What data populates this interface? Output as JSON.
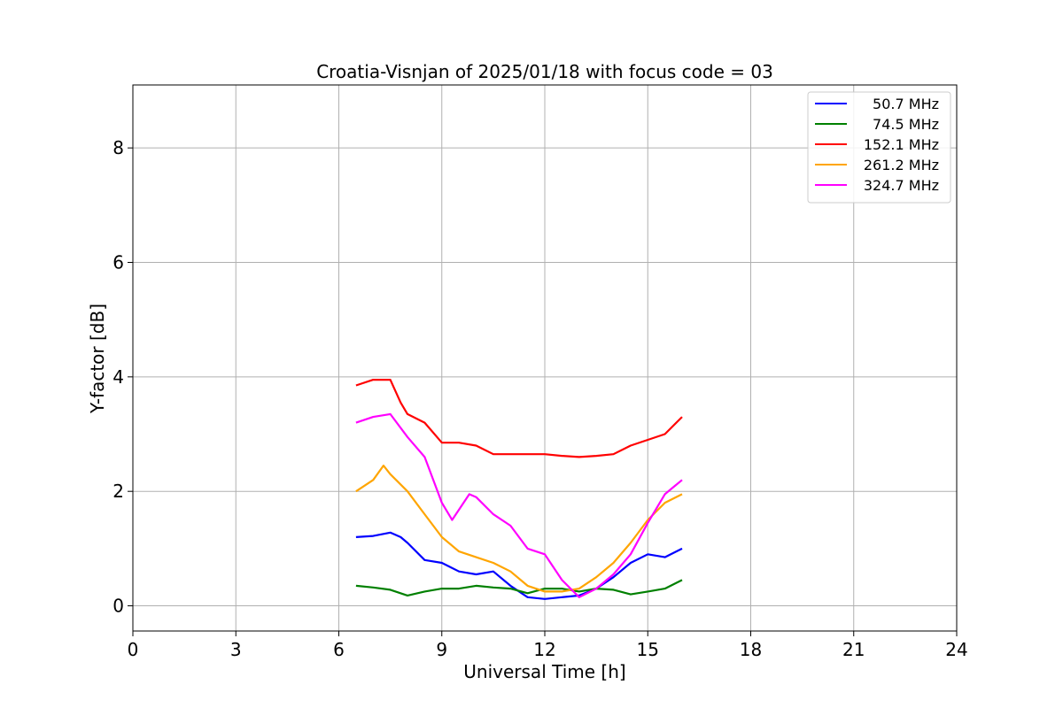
{
  "chart_data": {
    "type": "line",
    "title": "Croatia-Visnjan of 2025/01/18 with focus code = 03",
    "xlabel": "Universal Time [h]",
    "ylabel": "Y-factor [dB]",
    "xlim": [
      0,
      24
    ],
    "ylim": [
      -0.44,
      9.1
    ],
    "xticks": [
      0,
      3,
      6,
      9,
      12,
      15,
      18,
      21,
      24
    ],
    "yticks": [
      0,
      2,
      4,
      6,
      8
    ],
    "grid": true,
    "legend_position": "top-right",
    "series": [
      {
        "name": "50.7 MHz",
        "color": "#0000ff",
        "x": [
          6.5,
          7.0,
          7.5,
          7.8,
          8.0,
          8.5,
          9.0,
          9.5,
          10.0,
          10.5,
          11.0,
          11.5,
          12.0,
          12.5,
          13.0,
          13.5,
          14.0,
          14.5,
          15.0,
          15.5,
          16.0
        ],
        "y": [
          1.2,
          1.22,
          1.28,
          1.2,
          1.1,
          0.8,
          0.75,
          0.6,
          0.55,
          0.6,
          0.35,
          0.15,
          0.12,
          0.15,
          0.18,
          0.3,
          0.5,
          0.75,
          0.9,
          0.85,
          1.0
        ]
      },
      {
        "name": "74.5 MHz",
        "color": "#008000",
        "x": [
          6.5,
          7.0,
          7.5,
          8.0,
          8.5,
          9.0,
          9.5,
          10.0,
          10.5,
          11.0,
          11.5,
          12.0,
          12.5,
          13.0,
          13.5,
          14.0,
          14.5,
          15.0,
          15.5,
          16.0
        ],
        "y": [
          0.35,
          0.32,
          0.28,
          0.18,
          0.25,
          0.3,
          0.3,
          0.35,
          0.32,
          0.3,
          0.22,
          0.3,
          0.3,
          0.25,
          0.3,
          0.28,
          0.2,
          0.25,
          0.3,
          0.45
        ]
      },
      {
        "name": "152.1 MHz",
        "color": "#ff0000",
        "x": [
          6.5,
          7.0,
          7.5,
          7.8,
          8.0,
          8.5,
          9.0,
          9.5,
          10.0,
          10.5,
          11.0,
          11.5,
          12.0,
          12.5,
          13.0,
          13.5,
          14.0,
          14.5,
          15.0,
          15.5,
          16.0
        ],
        "y": [
          3.85,
          3.95,
          3.95,
          3.55,
          3.35,
          3.2,
          2.85,
          2.85,
          2.8,
          2.65,
          2.65,
          2.65,
          2.65,
          2.62,
          2.6,
          2.62,
          2.65,
          2.8,
          2.9,
          3.0,
          3.3
        ]
      },
      {
        "name": "261.2 MHz",
        "color": "#ffa500",
        "x": [
          6.5,
          7.0,
          7.3,
          7.5,
          8.0,
          8.5,
          9.0,
          9.5,
          10.0,
          10.5,
          11.0,
          11.5,
          12.0,
          12.5,
          13.0,
          13.5,
          14.0,
          14.5,
          15.0,
          15.5,
          16.0
        ],
        "y": [
          2.0,
          2.2,
          2.45,
          2.3,
          2.0,
          1.6,
          1.2,
          0.95,
          0.85,
          0.75,
          0.6,
          0.35,
          0.25,
          0.25,
          0.3,
          0.5,
          0.75,
          1.1,
          1.5,
          1.8,
          1.95
        ]
      },
      {
        "name": "324.7 MHz",
        "color": "#ff00ff",
        "x": [
          6.5,
          7.0,
          7.5,
          8.0,
          8.5,
          9.0,
          9.3,
          9.8,
          10.0,
          10.5,
          11.0,
          11.5,
          12.0,
          12.5,
          13.0,
          13.5,
          14.0,
          14.5,
          15.0,
          15.5,
          16.0
        ],
        "y": [
          3.2,
          3.3,
          3.35,
          2.95,
          2.6,
          1.8,
          1.5,
          1.95,
          1.9,
          1.6,
          1.4,
          1.0,
          0.9,
          0.45,
          0.15,
          0.3,
          0.55,
          0.9,
          1.45,
          1.95,
          2.2
        ]
      }
    ]
  }
}
